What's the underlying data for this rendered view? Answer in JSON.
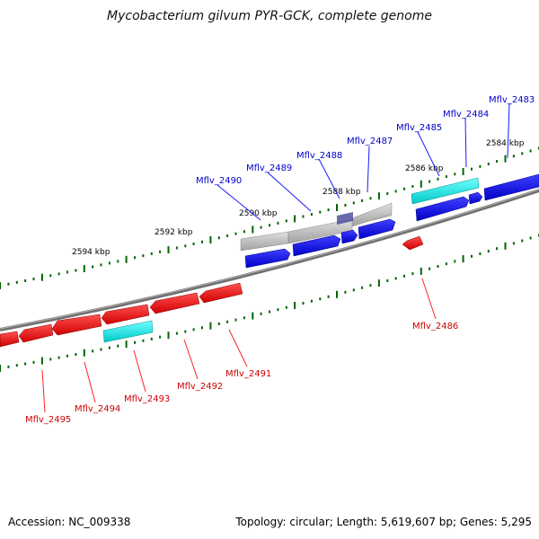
{
  "title": "Mycobacterium gilvum PYR-GCK, complete genome",
  "footer": {
    "accession": "Accession: NC_009338",
    "stats": "Topology: circular; Length: 5,619,607 bp; Genes: 5,295"
  },
  "colors": {
    "backbone": "#808080",
    "forward_gene": "#0000e0",
    "reverse_gene": "#ee0000",
    "rna": "#00e5e5",
    "pseudo": "#b0b0b0",
    "ticks": "#006400",
    "forward_label": "#0000cc",
    "reverse_label": "#cc0000"
  },
  "axis": {
    "tick_labels": [
      "2584 kbp",
      "2586 kbp",
      "2588 kbp",
      "2590 kbp",
      "2592 kbp",
      "2594 kbp"
    ]
  },
  "forward_genes": [
    {
      "label": "Mflv_2483"
    },
    {
      "label": "Mflv_2484"
    },
    {
      "label": "Mflv_2485"
    },
    {
      "label": "Mflv_2487"
    },
    {
      "label": "Mflv_2488"
    },
    {
      "label": "Mflv_2489"
    },
    {
      "label": "Mflv_2490"
    }
  ],
  "reverse_genes": [
    {
      "label": "Mflv_2486"
    },
    {
      "label": "Mflv_2491"
    },
    {
      "label": "Mflv_2492"
    },
    {
      "label": "Mflv_2493"
    },
    {
      "label": "Mflv_2494"
    },
    {
      "label": "Mflv_2495"
    }
  ]
}
